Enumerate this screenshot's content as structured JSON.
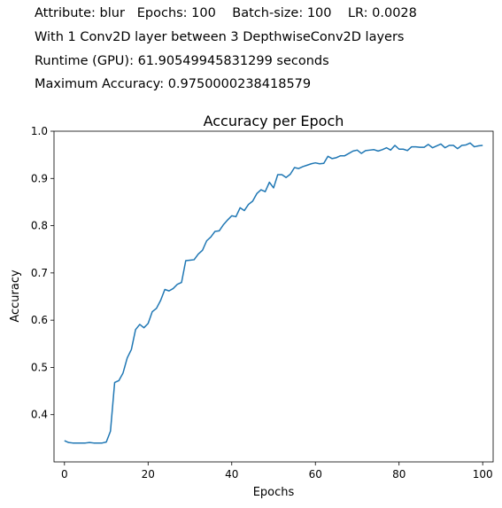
{
  "header": {
    "line1": "Attribute: blur   Epochs: 100    Batch-size: 100    LR: 0.0028",
    "line2": "With 1 Conv2D layer between 3 DepthwiseConv2D layers",
    "line3": "Runtime (GPU): 61.90549945831299 seconds",
    "line4": "Maximum Accuracy: 0.9750000238418579"
  },
  "chart_data": {
    "type": "line",
    "title": "Accuracy per Epoch",
    "xlabel": "Epochs",
    "ylabel": "Accuracy",
    "xlim": [
      -2.5,
      102.5
    ],
    "ylim": [
      0.3,
      1.0
    ],
    "xticks": [
      0,
      20,
      40,
      60,
      80,
      100
    ],
    "yticks": [
      0.4,
      0.5,
      0.6,
      0.7,
      0.8,
      0.9,
      1.0
    ],
    "grid": false,
    "color": "#1f77b4",
    "series": [
      {
        "x": [
          0,
          1,
          2,
          3,
          4,
          5,
          6,
          7,
          8,
          9,
          10,
          11,
          12,
          13,
          14,
          15,
          16,
          17,
          18,
          19,
          20,
          21,
          22,
          23,
          24,
          25,
          26,
          27,
          28,
          29,
          30,
          31,
          32,
          33,
          34,
          35,
          36,
          37,
          38,
          39,
          40,
          41,
          42,
          43,
          44,
          45,
          46,
          47,
          48,
          49,
          50,
          51,
          52,
          53,
          54,
          55,
          56,
          57,
          58,
          59,
          60,
          61,
          62,
          63,
          64,
          65,
          66,
          67,
          68,
          69,
          70,
          71,
          72,
          73,
          74,
          75,
          76,
          77,
          78,
          79,
          80,
          81,
          82,
          83,
          84,
          85,
          86,
          87,
          88,
          89,
          90,
          91,
          92,
          93,
          94,
          95,
          96,
          97,
          98,
          99,
          100
        ],
        "values": [
          0.345,
          0.341,
          0.34,
          0.34,
          0.34,
          0.34,
          0.341,
          0.34,
          0.34,
          0.34,
          0.342,
          0.365,
          0.468,
          0.472,
          0.488,
          0.52,
          0.538,
          0.58,
          0.591,
          0.584,
          0.593,
          0.618,
          0.625,
          0.642,
          0.665,
          0.662,
          0.667,
          0.676,
          0.68,
          0.726,
          0.727,
          0.728,
          0.74,
          0.748,
          0.768,
          0.776,
          0.788,
          0.789,
          0.802,
          0.812,
          0.821,
          0.819,
          0.838,
          0.832,
          0.845,
          0.852,
          0.868,
          0.876,
          0.872,
          0.892,
          0.88,
          0.908,
          0.908,
          0.902,
          0.909,
          0.923,
          0.921,
          0.925,
          0.928,
          0.931,
          0.933,
          0.931,
          0.932,
          0.947,
          0.942,
          0.944,
          0.948,
          0.948,
          0.953,
          0.958,
          0.96,
          0.953,
          0.959,
          0.96,
          0.961,
          0.958,
          0.961,
          0.965,
          0.96,
          0.97,
          0.962,
          0.962,
          0.959,
          0.967,
          0.967,
          0.966,
          0.966,
          0.972,
          0.965,
          0.969,
          0.973,
          0.965,
          0.97,
          0.97,
          0.963,
          0.97,
          0.971,
          0.975,
          0.967,
          0.969,
          0.97
        ]
      }
    ]
  }
}
